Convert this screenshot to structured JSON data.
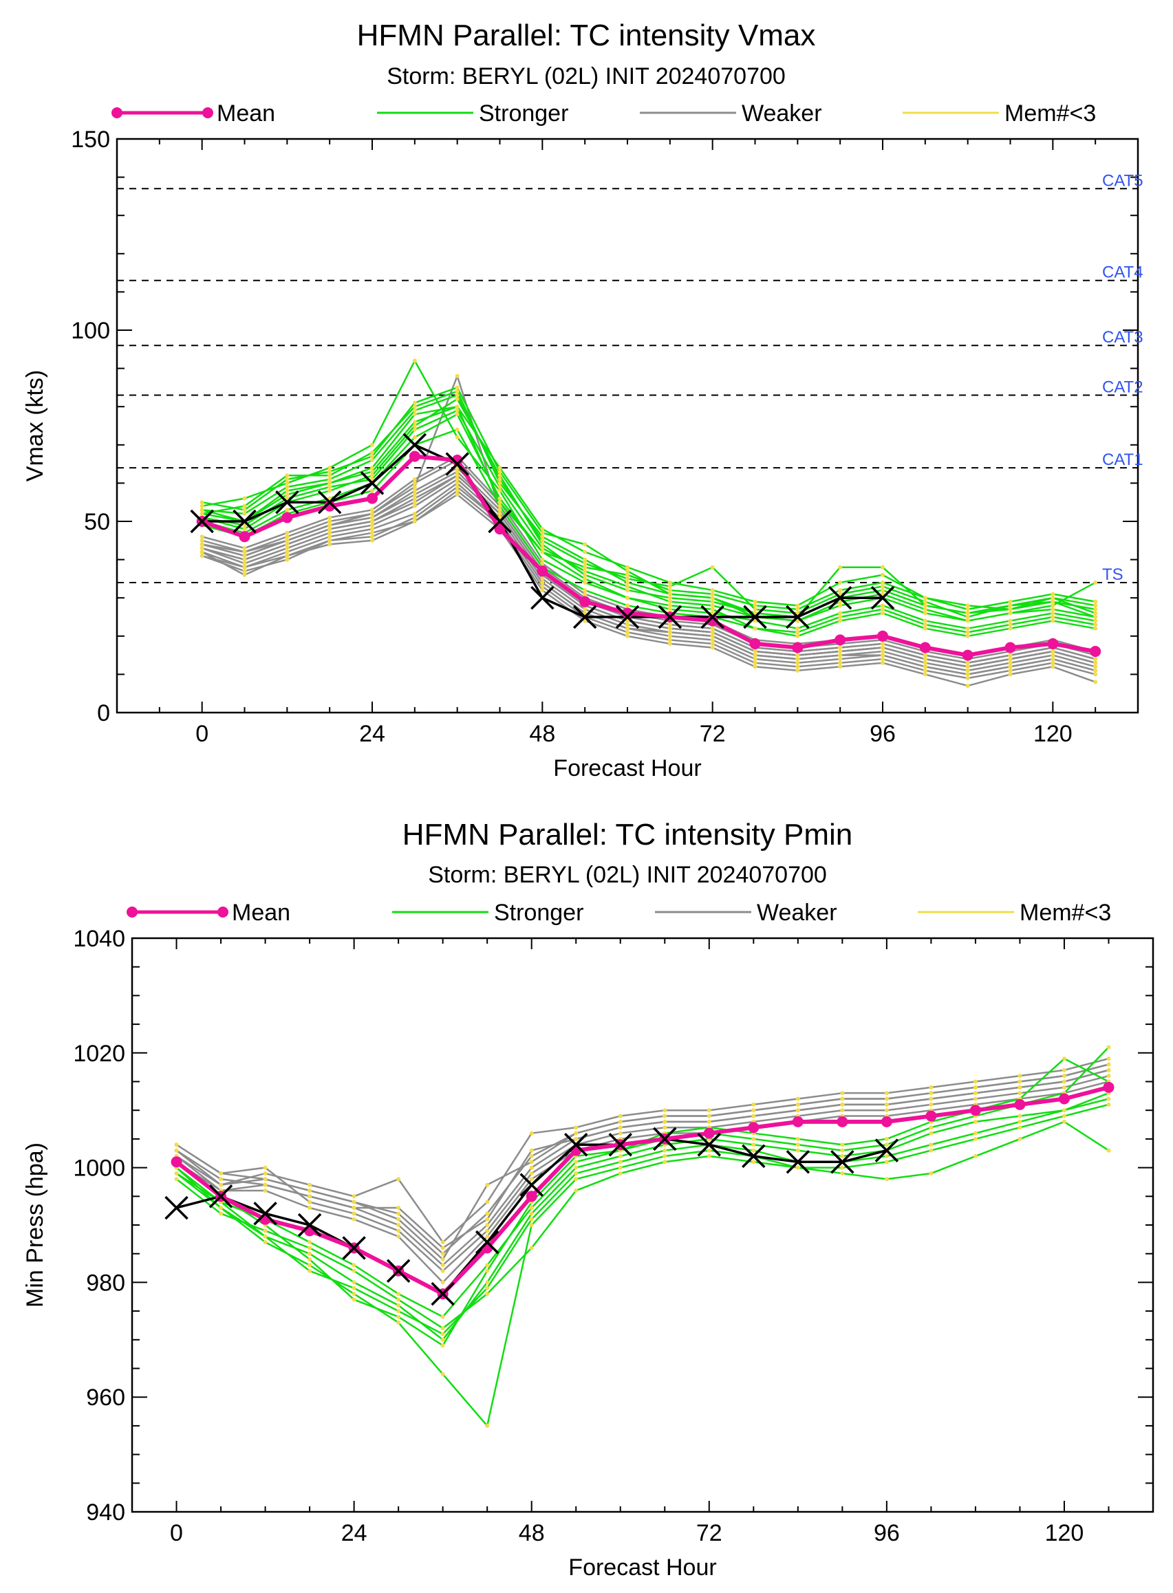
{
  "chart_data": [
    {
      "type": "line",
      "title": "HFMN Parallel: TC intensity Vmax",
      "subtitle": "Storm: BERYL (02L) INIT 2024070700",
      "xlabel": "Forecast Hour",
      "ylabel": "Vmax (kts)",
      "xlim": [
        -12,
        132
      ],
      "ylim": [
        0,
        150
      ],
      "xticks": [
        0,
        24,
        48,
        72,
        96,
        120
      ],
      "yticks": [
        0,
        50,
        100,
        150
      ],
      "grid": false,
      "legend": [
        "Mean",
        "Stronger",
        "Weaker",
        "Mem#<3"
      ],
      "legend_placement": "top",
      "colors": {
        "mean": "#ee1199",
        "stronger": "#11dd11",
        "weaker": "#8c8c8c",
        "mem": "#f2dc4a",
        "obs": "#000000",
        "cat_label": "#3355ee"
      },
      "thresholds": [
        {
          "label": "CAT5",
          "value": 137
        },
        {
          "label": "CAT4",
          "value": 113
        },
        {
          "label": "CAT3",
          "value": 96
        },
        {
          "label": "CAT2",
          "value": 83
        },
        {
          "label": "CAT1",
          "value": 64
        },
        {
          "label": "TS",
          "value": 34
        }
      ],
      "mean": {
        "x": [
          0,
          6,
          12,
          18,
          24,
          30,
          36,
          42,
          48,
          54,
          60,
          66,
          72,
          78,
          84,
          90,
          96,
          102,
          108,
          114,
          120,
          126
        ],
        "y": [
          50,
          46,
          51,
          54,
          56,
          67,
          66,
          48,
          37,
          29,
          26,
          25,
          24,
          18,
          17,
          19,
          20,
          17,
          15,
          17,
          18,
          16
        ]
      },
      "observed": {
        "x": [
          0,
          6,
          12,
          18,
          24,
          30,
          36,
          42,
          48,
          54,
          60,
          66,
          72,
          78,
          84,
          90,
          96
        ],
        "y": [
          50,
          50,
          55,
          55,
          60,
          70,
          65,
          50,
          30,
          25,
          25,
          25,
          25,
          25,
          25,
          30,
          30
        ]
      },
      "stronger_members": [
        [
          53,
          50,
          58,
          60,
          64,
          78,
          80,
          55,
          42,
          35,
          30,
          28,
          27,
          22,
          20,
          24,
          26,
          22,
          20,
          22,
          24,
          22
        ],
        [
          52,
          54,
          62,
          62,
          68,
          80,
          84,
          60,
          46,
          40,
          34,
          31,
          30,
          25,
          24,
          28,
          30,
          26,
          24,
          26,
          27,
          25
        ],
        [
          51,
          48,
          55,
          58,
          62,
          75,
          82,
          62,
          44,
          36,
          32,
          30,
          29,
          26,
          25,
          30,
          32,
          28,
          26,
          28,
          29,
          27
        ],
        [
          54,
          56,
          60,
          64,
          70,
          92,
          72,
          58,
          40,
          34,
          30,
          27,
          26,
          24,
          22,
          26,
          28,
          24,
          22,
          24,
          26,
          24
        ],
        [
          50,
          47,
          53,
          56,
          60,
          72,
          78,
          56,
          42,
          38,
          36,
          32,
          31,
          28,
          27,
          32,
          34,
          30,
          28,
          27,
          30,
          28
        ],
        [
          52,
          50,
          57,
          60,
          63,
          76,
          80,
          64,
          48,
          42,
          38,
          34,
          32,
          29,
          28,
          34,
          36,
          30,
          27,
          29,
          31,
          29
        ],
        [
          49,
          46,
          52,
          55,
          58,
          70,
          74,
          54,
          38,
          32,
          28,
          26,
          25,
          22,
          21,
          25,
          27,
          23,
          21,
          23,
          25,
          23
        ],
        [
          53,
          52,
          59,
          61,
          66,
          79,
          83,
          61,
          45,
          39,
          35,
          33,
          38,
          27,
          26,
          31,
          33,
          29,
          25,
          28,
          30,
          26
        ],
        [
          51,
          49,
          56,
          59,
          61,
          74,
          79,
          59,
          43,
          37,
          33,
          29,
          28,
          25,
          24,
          29,
          31,
          27,
          24,
          26,
          28,
          34
        ],
        [
          55,
          53,
          61,
          63,
          67,
          81,
          85,
          63,
          47,
          44,
          37,
          31,
          30,
          26,
          25,
          38,
          38,
          28,
          26,
          27,
          29,
          25
        ]
      ],
      "weaker_members": [
        [
          43,
          40,
          44,
          48,
          50,
          55,
          62,
          52,
          36,
          28,
          24,
          22,
          21,
          16,
          15,
          16,
          17,
          14,
          12,
          14,
          16,
          13
        ],
        [
          42,
          38,
          42,
          46,
          48,
          52,
          60,
          50,
          34,
          26,
          22,
          20,
          19,
          14,
          13,
          14,
          15,
          12,
          10,
          12,
          14,
          11
        ],
        [
          44,
          41,
          45,
          49,
          51,
          58,
          64,
          53,
          37,
          29,
          25,
          23,
          22,
          17,
          16,
          17,
          18,
          15,
          13,
          15,
          17,
          14
        ],
        [
          41,
          37,
          40,
          45,
          47,
          50,
          58,
          49,
          33,
          25,
          21,
          19,
          18,
          13,
          12,
          13,
          14,
          11,
          9,
          11,
          13,
          10
        ],
        [
          45,
          42,
          46,
          50,
          52,
          60,
          66,
          54,
          38,
          30,
          26,
          24,
          23,
          18,
          17,
          18,
          19,
          16,
          14,
          16,
          18,
          15
        ],
        [
          43,
          39,
          43,
          47,
          49,
          54,
          61,
          51,
          35,
          27,
          23,
          21,
          20,
          15,
          14,
          15,
          16,
          13,
          11,
          13,
          15,
          12
        ],
        [
          42,
          36,
          41,
          45,
          46,
          51,
          59,
          50,
          34,
          26,
          22,
          21,
          20,
          15,
          14,
          15,
          15,
          12,
          10,
          12,
          14,
          11
        ],
        [
          44,
          42,
          45,
          49,
          51,
          57,
          63,
          52,
          36,
          28,
          24,
          22,
          21,
          16,
          15,
          16,
          17,
          14,
          12,
          14,
          16,
          13
        ],
        [
          46,
          43,
          47,
          51,
          53,
          61,
          67,
          55,
          39,
          31,
          27,
          25,
          24,
          19,
          18,
          19,
          20,
          17,
          15,
          17,
          19,
          16
        ],
        [
          41,
          38,
          41,
          44,
          45,
          50,
          57,
          48,
          32,
          24,
          20,
          18,
          17,
          12,
          11,
          12,
          13,
          10,
          7,
          10,
          12,
          8
        ],
        [
          43,
          40,
          44,
          48,
          50,
          56,
          62,
          52,
          36,
          28,
          24,
          22,
          21,
          16,
          15,
          16,
          17,
          14,
          12,
          14,
          16,
          13
        ],
        [
          44,
          41,
          45,
          49,
          52,
          59,
          88,
          53,
          37,
          29,
          25,
          23,
          22,
          17,
          16,
          17,
          18,
          15,
          13,
          15,
          17,
          14
        ]
      ]
    },
    {
      "type": "line",
      "title": "HFMN Parallel: TC intensity Pmin",
      "subtitle": "Storm: BERYL (02L) INIT 2024070700",
      "xlabel": "Forecast Hour",
      "ylabel": "Min Press (hpa)",
      "xlim": [
        -6,
        132
      ],
      "ylim": [
        940,
        1040
      ],
      "xticks": [
        0,
        24,
        48,
        72,
        96,
        120
      ],
      "yticks": [
        940,
        960,
        980,
        1000,
        1020,
        1040
      ],
      "grid": false,
      "legend": [
        "Mean",
        "Stronger",
        "Weaker",
        "Mem#<3"
      ],
      "legend_placement": "top",
      "colors": {
        "mean": "#ee1199",
        "stronger": "#11dd11",
        "weaker": "#8c8c8c",
        "mem": "#f2dc4a",
        "obs": "#000000"
      },
      "mean": {
        "x": [
          0,
          6,
          12,
          18,
          24,
          30,
          36,
          42,
          48,
          54,
          60,
          66,
          72,
          78,
          84,
          90,
          96,
          102,
          108,
          114,
          120,
          126
        ],
        "y": [
          1001,
          995,
          991,
          989,
          986,
          982,
          978,
          986,
          995,
          1003,
          1004,
          1005,
          1006,
          1007,
          1008,
          1008,
          1008,
          1009,
          1010,
          1011,
          1012,
          1014
        ]
      },
      "observed": {
        "x": [
          0,
          6,
          12,
          18,
          24,
          30,
          36,
          42,
          48,
          54,
          60,
          66,
          72,
          78,
          84,
          90,
          96
        ],
        "y": [
          993,
          995,
          992,
          990,
          986,
          982,
          978,
          987,
          997,
          1004,
          1004,
          1005,
          1004,
          1002,
          1001,
          1001,
          1003
        ]
      },
      "stronger_members": [
        [
          999,
          994,
          988,
          985,
          980,
          976,
          970,
          980,
          992,
          1000,
          1002,
          1004,
          1005,
          1004,
          1003,
          1002,
          1003,
          1006,
          1008,
          1009,
          1010,
          1012
        ],
        [
          1000,
          993,
          987,
          983,
          978,
          973,
          964,
          955,
          990,
          998,
          1000,
          1002,
          1003,
          1002,
          1000,
          999,
          998,
          999,
          1002,
          1005,
          1008,
          1003
        ],
        [
          998,
          992,
          989,
          986,
          982,
          977,
          972,
          978,
          986,
          996,
          999,
          1001,
          1002,
          1001,
          1000,
          1000,
          1001,
          1003,
          1005,
          1007,
          1009,
          1011
        ],
        [
          1001,
          995,
          990,
          984,
          977,
          974,
          969,
          982,
          994,
          1002,
          1003,
          1005,
          1006,
          1005,
          1004,
          1003,
          1004,
          1007,
          1009,
          1011,
          1013,
          1021
        ],
        [
          999,
          993,
          988,
          982,
          979,
          975,
          971,
          979,
          991,
          999,
          1001,
          1003,
          1004,
          1003,
          1001,
          1001,
          1002,
          1004,
          1006,
          1008,
          1010,
          1013
        ],
        [
          1000,
          994,
          991,
          987,
          983,
          978,
          974,
          983,
          993,
          1001,
          1003,
          1006,
          1007,
          1006,
          1005,
          1004,
          1005,
          1008,
          1010,
          1012,
          1019,
          1015
        ]
      ],
      "weaker_members": [
        [
          1004,
          999,
          998,
          996,
          994,
          992,
          985,
          992,
          1002,
          1006,
          1008,
          1009,
          1009,
          1010,
          1011,
          1012,
          1012,
          1013,
          1014,
          1015,
          1016,
          1018
        ],
        [
          1003,
          998,
          997,
          995,
          993,
          990,
          983,
          990,
          1000,
          1005,
          1007,
          1008,
          1008,
          1009,
          1010,
          1011,
          1011,
          1012,
          1013,
          1014,
          1015,
          1017
        ],
        [
          1002,
          997,
          999,
          997,
          995,
          998,
          987,
          994,
          1006,
          1007,
          1009,
          1010,
          1010,
          1011,
          1012,
          1013,
          1013,
          1014,
          1015,
          1016,
          1017,
          1019
        ],
        [
          1004,
          999,
          1000,
          994,
          992,
          989,
          982,
          989,
          999,
          1004,
          1006,
          1007,
          1007,
          1008,
          1009,
          1010,
          1010,
          1011,
          1012,
          1013,
          1014,
          1016
        ],
        [
          1001,
          996,
          996,
          993,
          991,
          988,
          980,
          988,
          998,
          1003,
          1005,
          1006,
          1006,
          1007,
          1008,
          1009,
          1009,
          1010,
          1011,
          1012,
          1013,
          1015
        ],
        [
          1003,
          997,
          998,
          996,
          994,
          991,
          984,
          997,
          1001,
          1006,
          1008,
          1009,
          1009,
          1010,
          1011,
          1012,
          1012,
          1013,
          1014,
          1015,
          1016,
          1018
        ],
        [
          1002,
          996,
          997,
          995,
          993,
          993,
          986,
          991,
          1003,
          1005,
          1007,
          1008,
          1008,
          1009,
          1010,
          1011,
          1011,
          1012,
          1013,
          1014,
          1015,
          1017
        ]
      ]
    }
  ]
}
